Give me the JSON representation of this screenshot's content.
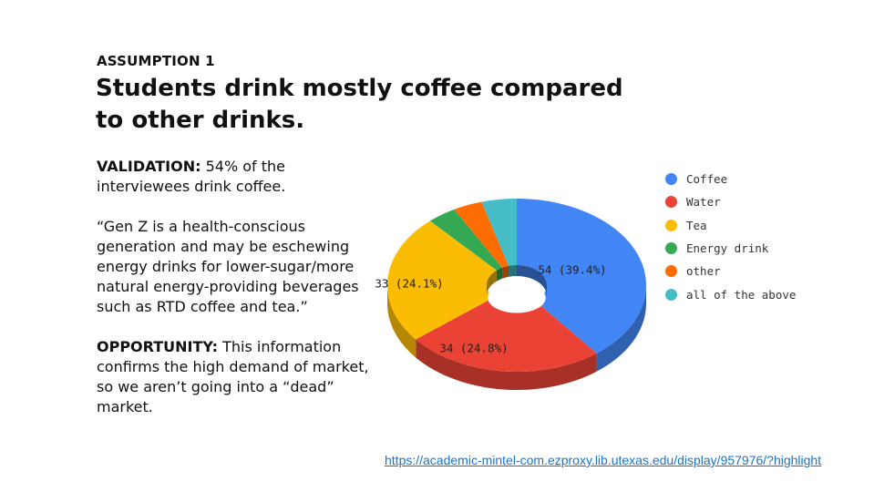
{
  "slide": {
    "kicker": "ASSUMPTION 1",
    "title": "Students drink mostly coffee compared to other drinks.",
    "validation_label": "VALIDATION:",
    "validation_text": " 54% of the interviewees drink coffee.",
    "quote": "“Gen Z is a health-conscious generation and may be eschewing energy drinks for lower-sugar/more natural energy-providing beverages such as RTD coffee and tea.”",
    "opportunity_label": "OPPORTUNITY:",
    "opportunity_text": " This information confirms the high demand of market, so we aren’t going into a “dead” market.",
    "source_link": "https://academic-mintel-com.ezproxy.lib.utexas.edu/display/957976/?highlight"
  },
  "chart_data": {
    "type": "pie",
    "style": "3d-donut",
    "legend_position": "right",
    "categories": [
      "Coffee",
      "Water",
      "Tea",
      "Energy drink",
      "other",
      "all of the above"
    ],
    "values": [
      54,
      34,
      33,
      5,
      5,
      6
    ],
    "colors": [
      "#4285f4",
      "#ea4335",
      "#fbbc04",
      "#34a853",
      "#ff6d01",
      "#46bdc6"
    ],
    "data_labels": [
      "54 (39.4%)",
      "34 (24.8%)",
      "33 (24.1%)",
      "",
      "",
      ""
    ]
  }
}
